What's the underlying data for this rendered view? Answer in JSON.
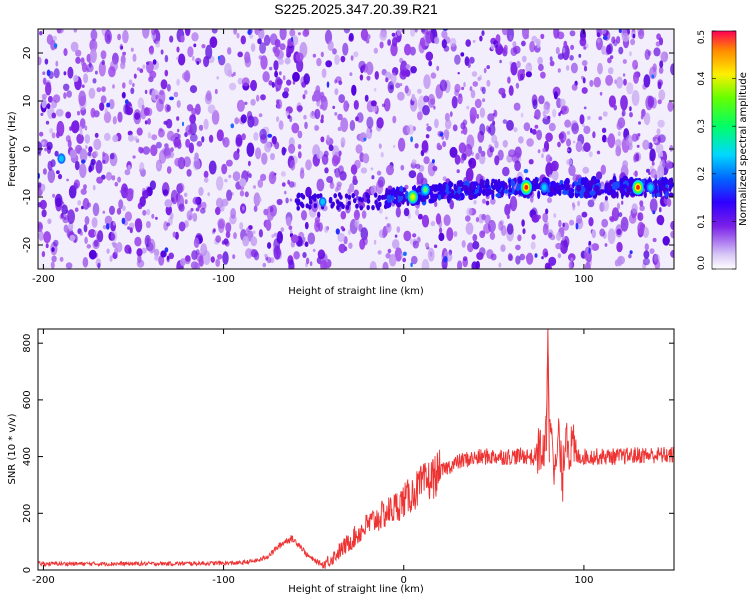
{
  "title": "S225.2025.347.20.39.R21",
  "colors": {
    "snr_line": "#ee3333",
    "axis": "#000000",
    "spectrogram_background": "#ffffff",
    "spectrogram_low": "#f4eefc",
    "spectrogram_mid": "#8a2ee6",
    "spectrogram_high": "#3d00d6"
  },
  "chart_data": [
    {
      "type": "heatmap",
      "name": "spectrogram",
      "xlabel": "Height of straight line (km)",
      "ylabel": "Frequency (Hz)",
      "xlim": [
        -203,
        150
      ],
      "ylim": [
        -25,
        25
      ],
      "xticks": [
        -200,
        -100,
        0,
        100
      ],
      "yticks": [
        -20,
        -10,
        0,
        10,
        20
      ],
      "grid": false,
      "colorbar": {
        "label": "Normalized spectral amplitude",
        "range": [
          0.0,
          0.5
        ],
        "ticks": [
          "0.0",
          "0.1",
          "0.2",
          "0.3",
          "0.4",
          "0.5"
        ],
        "colormap": "rainbow"
      },
      "signal_track": {
        "description_values": "bright spectral trace at about -8 to -10 Hz starting near -10 km",
        "x": [
          -10,
          0,
          10,
          20,
          40,
          60,
          68,
          80,
          100,
          120,
          130,
          150
        ],
        "y": [
          -10,
          -10,
          -9.5,
          -9,
          -8.5,
          -8,
          -8,
          -8,
          -8,
          -8,
          -8,
          -8
        ]
      },
      "hotspots": [
        {
          "x": -190,
          "y": -2,
          "value": 0.15
        },
        {
          "x": -45,
          "y": -11,
          "value": 0.12
        },
        {
          "x": 5,
          "y": -10,
          "value": 0.3
        },
        {
          "x": 12,
          "y": -8.5,
          "value": 0.2
        },
        {
          "x": 68,
          "y": -8,
          "value": 0.35
        },
        {
          "x": 78,
          "y": -8,
          "value": 0.15
        },
        {
          "x": 130,
          "y": -8,
          "value": 0.35
        },
        {
          "x": 137,
          "y": -8,
          "value": 0.15
        }
      ]
    },
    {
      "type": "line",
      "name": "snr",
      "xlabel": "Height of straight line (km)",
      "ylabel": "SNR (10 * v/v)",
      "xlim": [
        -203,
        150
      ],
      "ylim": [
        0,
        850
      ],
      "xticks": [
        -200,
        -100,
        0,
        100
      ],
      "yticks": [
        0,
        200,
        400,
        600,
        800
      ],
      "grid": false,
      "series": [
        {
          "x": [
            -203,
            -180,
            -160,
            -140,
            -120,
            -100,
            -90,
            -80,
            -75,
            -70,
            -65,
            -62,
            -58,
            -54,
            -50,
            -45,
            -40,
            -35,
            -30,
            -25,
            -20,
            -15,
            -10,
            -5,
            0,
            5,
            10,
            15,
            20,
            25,
            30,
            35,
            40,
            45,
            50,
            55,
            60,
            65,
            70,
            72,
            74,
            76,
            78,
            79,
            80,
            81,
            82,
            84,
            86,
            88,
            90,
            92,
            94,
            96,
            100,
            110,
            120,
            130,
            140,
            150
          ],
          "y": [
            22,
            22,
            22,
            22,
            23,
            24,
            25,
            35,
            50,
            80,
            105,
            110,
            90,
            55,
            35,
            20,
            40,
            70,
            100,
            130,
            160,
            180,
            200,
            220,
            245,
            270,
            300,
            320,
            345,
            365,
            380,
            390,
            395,
            400,
            400,
            400,
            400,
            402,
            402,
            390,
            420,
            430,
            380,
            500,
            850,
            450,
            560,
            320,
            480,
            300,
            520,
            420,
            430,
            400,
            400,
            400,
            400,
            405,
            405,
            405
          ]
        }
      ],
      "annotations": [
        {
          "x": -62,
          "y": 140,
          "text": ""
        },
        {
          "x": -2,
          "y": 410,
          "text": ""
        }
      ]
    }
  ]
}
